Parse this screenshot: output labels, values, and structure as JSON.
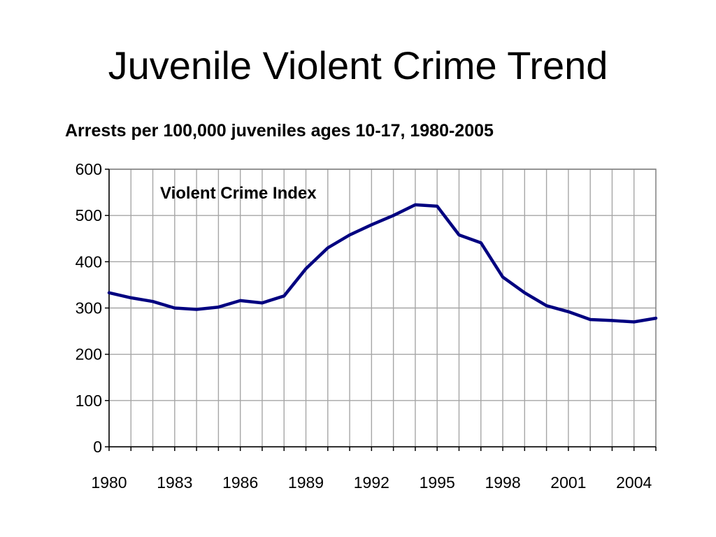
{
  "slide": {
    "title": "Juvenile Violent Crime Trend"
  },
  "chart_data": {
    "type": "line",
    "title": "Arrests per 100,000 juveniles ages 10-17, 1980-2005",
    "annotation": "Violent Crime Index",
    "xlabel": "",
    "ylabel": "",
    "x": [
      1980,
      1981,
      1982,
      1983,
      1984,
      1985,
      1986,
      1987,
      1988,
      1989,
      1990,
      1991,
      1992,
      1993,
      1994,
      1995,
      1996,
      1997,
      1998,
      1999,
      2000,
      2001,
      2002,
      2003,
      2004,
      2005
    ],
    "series": [
      {
        "values": [
          333,
          322,
          314,
          300,
          297,
          302,
          316,
          311,
          326,
          385,
          430,
          458,
          480,
          500,
          523,
          520,
          458,
          441,
          367,
          333,
          305,
          292,
          275,
          273,
          270,
          278
        ],
        "color": "#000080"
      }
    ],
    "xlim": [
      1980,
      2005
    ],
    "ylim": [
      0,
      600
    ],
    "xticks": [
      1980,
      1983,
      1986,
      1989,
      1992,
      1995,
      1998,
      2001,
      2004
    ],
    "yticks": [
      0,
      100,
      200,
      300,
      400,
      500,
      600
    ],
    "grid": true,
    "legend": "none"
  }
}
